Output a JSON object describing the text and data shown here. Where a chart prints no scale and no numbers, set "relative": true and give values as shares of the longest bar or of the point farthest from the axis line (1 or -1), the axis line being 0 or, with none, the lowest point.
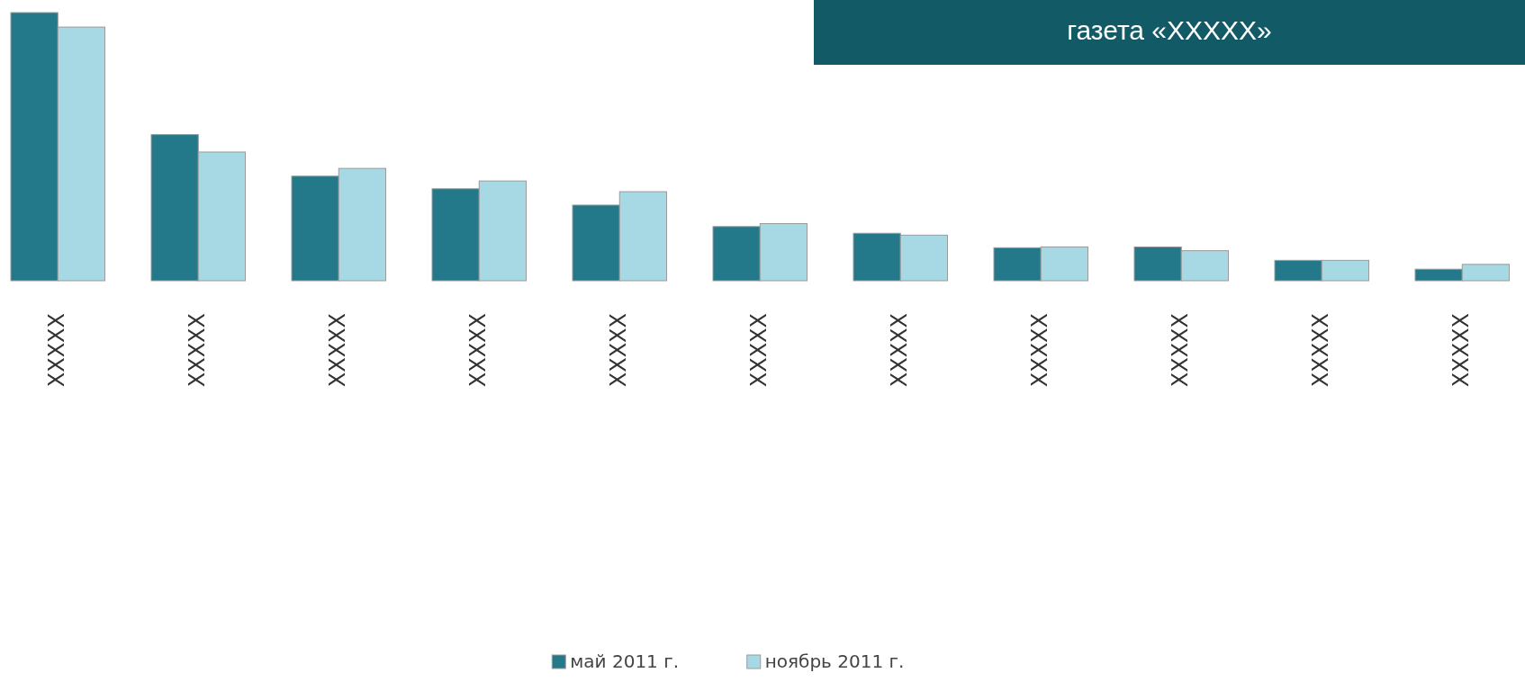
{
  "chart_data": {
    "type": "bar",
    "title": "газета «XXXXX»",
    "relative": true,
    "legend": "bottom",
    "categories": [
      "XXXXX",
      "XXXXX",
      "XXXXX",
      "XXXXX",
      "XXXXX",
      "XXXXX",
      "XXXXX",
      "XXXXX",
      "XXXXX",
      "XXXXX",
      "XXXXX"
    ],
    "series": [
      {
        "name": "май 2011 г.",
        "color": "#23798a",
        "values": [
          1.0,
          0.545,
          0.39,
          0.343,
          0.282,
          0.202,
          0.177,
          0.123,
          0.126,
          0.076,
          0.043
        ]
      },
      {
        "name": "ноябрь 2011 г.",
        "color": "#a6d9e4",
        "values": [
          0.946,
          0.48,
          0.419,
          0.372,
          0.332,
          0.213,
          0.17,
          0.126,
          0.112,
          0.076,
          0.061
        ]
      }
    ]
  }
}
